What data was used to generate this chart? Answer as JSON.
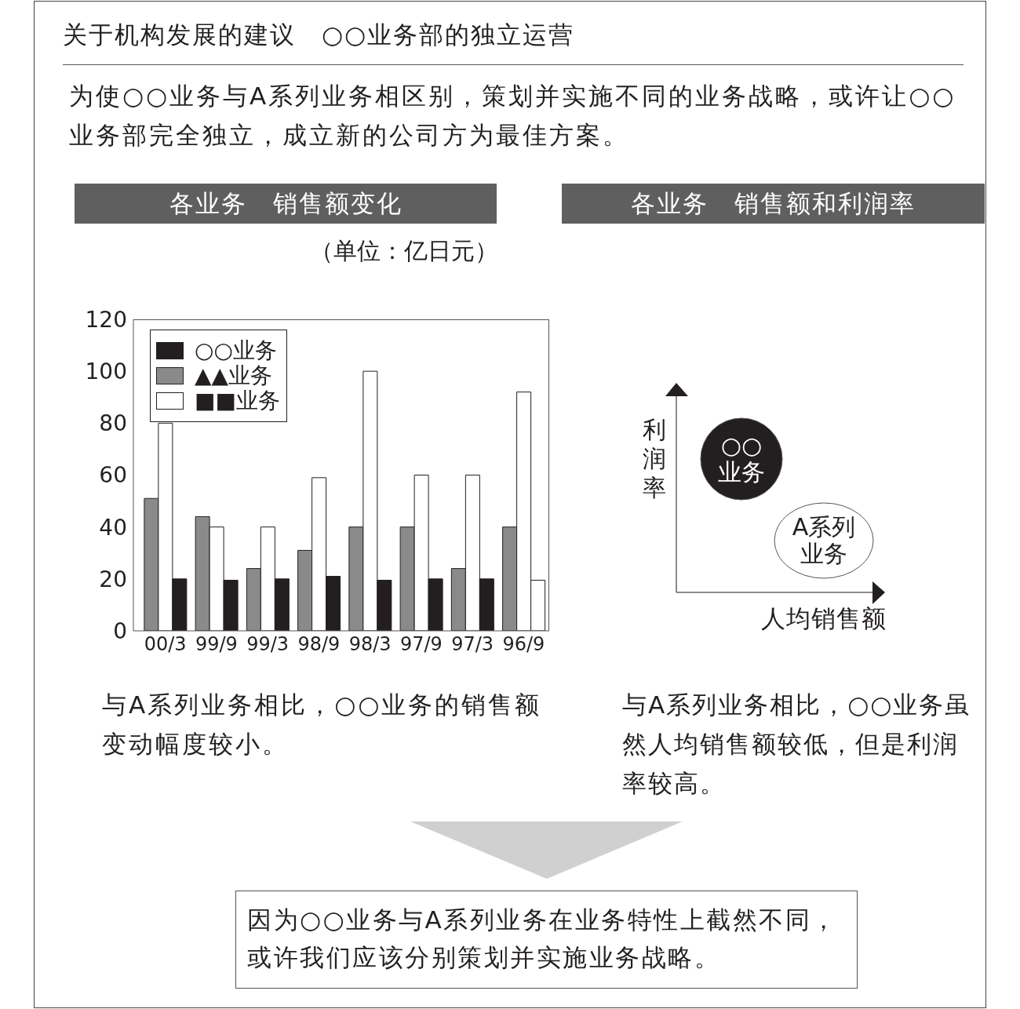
{
  "chart_data": [
    {
      "type": "other",
      "title": "关于机构发展的建议　○○业务部的独立运营",
      "annotations": [
        "为使○○业务与A系列业务相区别，策划并实施不同的业务战略，或许让○○业务部完全独立，成立新的公司方为最佳方案。"
      ]
    },
    {
      "type": "bar",
      "title": "各业务　销售额变化",
      "subtitle": "（单位：亿日元）",
      "categories": [
        "00/3",
        "99/9",
        "99/3",
        "98/9",
        "98/3",
        "97/9",
        "97/3",
        "96/9"
      ],
      "series": [
        {
          "name": "▲▲业务",
          "color": "#8a8a8a",
          "values": [
            51,
            44,
            24,
            31,
            40,
            40,
            24,
            40
          ]
        },
        {
          "name": "■■业务",
          "color": "#ffffff",
          "values": [
            80,
            40,
            40,
            59,
            100,
            60,
            60,
            92
          ]
        },
        {
          "name": "○○业务",
          "color": "#231f20",
          "colors": [
            "#231f20",
            "#231f20",
            "#231f20",
            "#231f20",
            "#231f20",
            "#231f20",
            "#231f20",
            "#ffffff"
          ],
          "values": [
            20,
            19.5,
            20,
            21,
            19.5,
            20,
            20,
            19.5
          ]
        }
      ],
      "ylim": [
        0,
        120
      ],
      "yticks": [
        0,
        20,
        40,
        60,
        80,
        100,
        120
      ],
      "legend": "top left",
      "annotations": [
        "与A系列业务相比，○○业务的销售额变动幅度较小。"
      ]
    },
    {
      "type": "other",
      "title": "各业务　销售额和利润率",
      "xlabel": "人均销售额",
      "ylabel": "利润率",
      "categories": [
        "○○业务",
        "A系列业务"
      ],
      "colors": [
        "#231f20",
        "#ffffff"
      ],
      "annotations": [
        "与A系列业务相比，○○业务虽然人均销售额较低，但是利润率较高。"
      ]
    },
    {
      "type": "other",
      "annotations": [
        "因为○○业务与A系列业务在业务特性上截然不同，或许我们应该分别策划并实施业务战略。"
      ]
    }
  ]
}
